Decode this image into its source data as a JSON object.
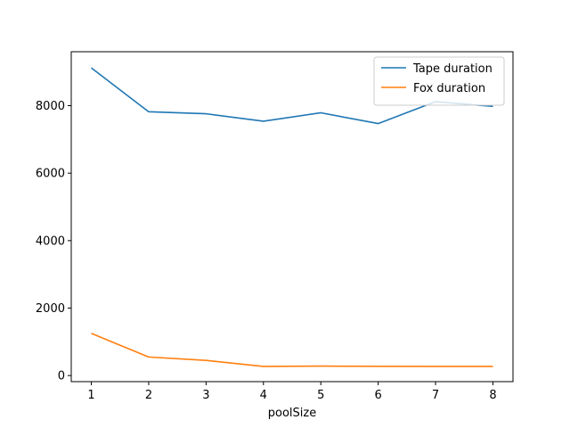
{
  "chart_data": {
    "type": "line",
    "title": "",
    "xlabel": "poolSize",
    "ylabel": "",
    "x": [
      1,
      2,
      3,
      4,
      5,
      6,
      7,
      8
    ],
    "xlim": [
      0.65,
      8.35
    ],
    "ylim": [
      -180,
      9600
    ],
    "xticks": [
      1,
      2,
      3,
      4,
      5,
      6,
      7,
      8
    ],
    "yticks": [
      0,
      2000,
      4000,
      6000,
      8000
    ],
    "grid": false,
    "legend_position": "upper right",
    "series": [
      {
        "name": "Tape duration",
        "color": "#1f77b4",
        "values": [
          9120,
          7820,
          7760,
          7540,
          7790,
          7470,
          8120,
          7980
        ]
      },
      {
        "name": "Fox duration",
        "color": "#ff7f0e",
        "values": [
          1250,
          550,
          450,
          270,
          280,
          275,
          270,
          272
        ]
      }
    ]
  }
}
